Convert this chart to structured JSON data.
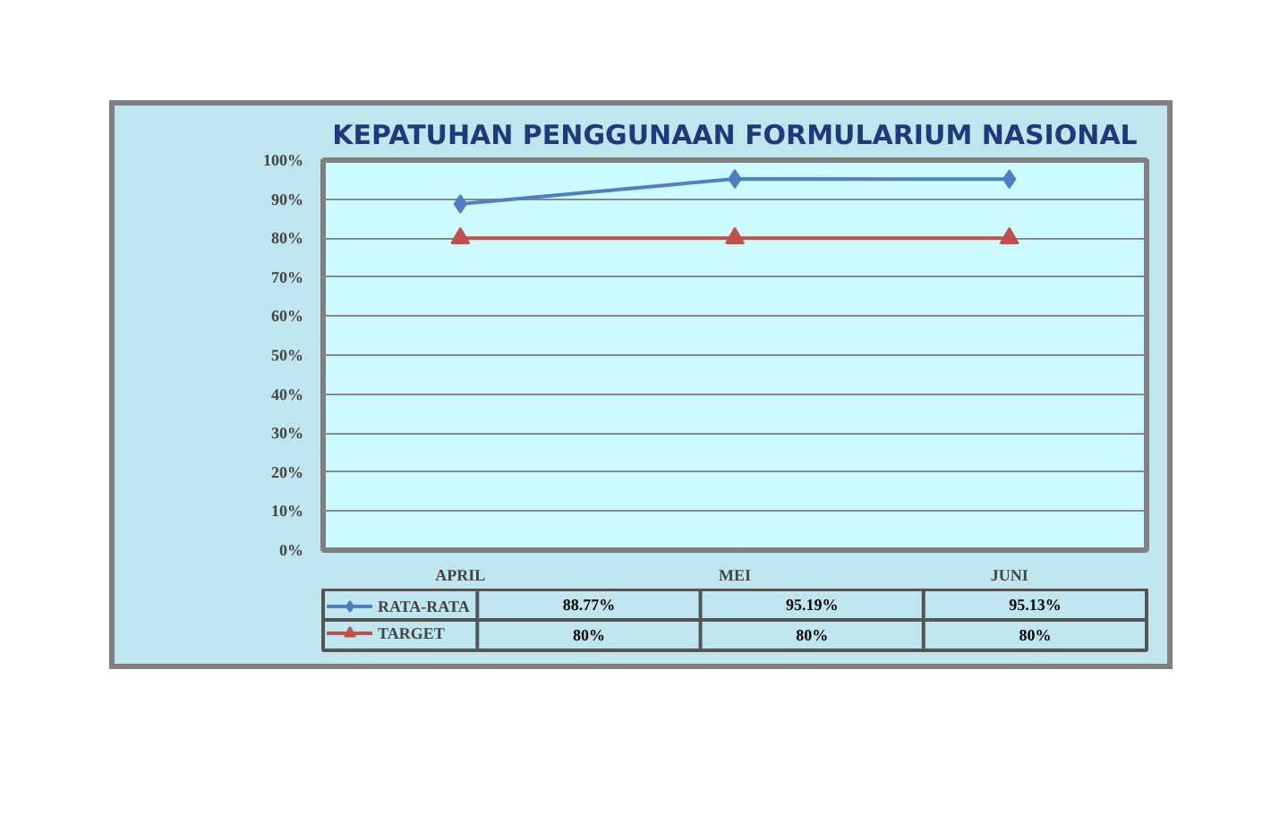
{
  "chart_data": {
    "type": "line",
    "title": "KEPATUHAN PENGGUNAAN FORMULARIUM NASIONAL",
    "categories": [
      "APRIL",
      "MEI",
      "JUNI"
    ],
    "series": [
      {
        "name": "RATA-RATA",
        "color": "#4f7fc0",
        "marker": "diamond",
        "values": [
          88.77,
          95.19,
          95.13
        ],
        "value_labels": [
          "88.77%",
          "95.19%",
          "95.13%"
        ]
      },
      {
        "name": "TARGET",
        "color": "#c0504d",
        "marker": "triangle",
        "values": [
          80,
          80,
          80
        ],
        "value_labels": [
          "80%",
          "80%",
          "80%"
        ]
      }
    ],
    "ylim": [
      0,
      100
    ],
    "yticks": [
      {
        "value": 0,
        "label": "0%"
      },
      {
        "value": 10,
        "label": "10%"
      },
      {
        "value": 20,
        "label": "20%"
      },
      {
        "value": 30,
        "label": "30%"
      },
      {
        "value": 40,
        "label": "40%"
      },
      {
        "value": 50,
        "label": "50%"
      },
      {
        "value": 60,
        "label": "60%"
      },
      {
        "value": 70,
        "label": "70%"
      },
      {
        "value": 80,
        "label": "80%"
      },
      {
        "value": 90,
        "label": "90%"
      },
      {
        "value": 100,
        "label": "100%"
      }
    ],
    "grid": "y",
    "legend": "bottom"
  }
}
